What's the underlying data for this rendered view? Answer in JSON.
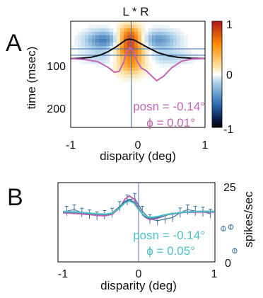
{
  "chart_data": [
    {
      "panel": "A",
      "type": "heatmap",
      "title": "L * R",
      "xlabel": "disparity (deg)",
      "ylabel": "time (msec)",
      "xlim": [
        -1,
        1
      ],
      "ylim": [
        0,
        250
      ],
      "y_reversed": true,
      "x_ticks": [
        "-1",
        "0",
        "1"
      ],
      "y_ticks": [
        "100",
        "200"
      ],
      "colorbar": {
        "min": -1,
        "max": 1,
        "ticks": [
          "1",
          "0",
          "-1"
        ]
      },
      "heat_blobs": [
        {
          "x": -0.12,
          "y": 40,
          "sx": 0.13,
          "sy": 20,
          "v": 0.9
        },
        {
          "x": -0.12,
          "y": 75,
          "sx": 0.18,
          "sy": 18,
          "v": 0.55
        },
        {
          "x": -0.5,
          "y": 45,
          "sx": 0.2,
          "sy": 16,
          "v": -0.55
        },
        {
          "x": 0.3,
          "y": 45,
          "sx": 0.2,
          "sy": 16,
          "v": -0.45
        },
        {
          "x": -0.1,
          "y": 105,
          "sx": 0.14,
          "sy": 18,
          "v": 0.4
        },
        {
          "x": -0.45,
          "y": 85,
          "sx": 0.25,
          "sy": 12,
          "v": -0.2
        },
        {
          "x": 0.45,
          "y": 85,
          "sx": 0.25,
          "sy": 12,
          "v": -0.2
        }
      ],
      "crosshair": {
        "x": -0.1,
        "y_values": [
          65,
          80
        ]
      },
      "series": [
        {
          "color": "#111111",
          "x": [
            -1.0,
            -0.85,
            -0.7,
            -0.55,
            -0.45,
            -0.35,
            -0.25,
            -0.18,
            -0.12,
            -0.06,
            0.0,
            0.1,
            0.2,
            0.3,
            0.45,
            0.6,
            0.8,
            1.0
          ],
          "y": [
            88,
            87,
            85,
            79,
            72,
            63,
            52,
            44,
            42,
            44,
            49,
            58,
            66,
            74,
            81,
            85,
            87,
            88
          ]
        },
        {
          "color": "#c266b4",
          "x": [
            -1.0,
            -0.8,
            -0.6,
            -0.45,
            -0.35,
            -0.28,
            -0.22,
            -0.16,
            -0.12,
            -0.07,
            -0.02,
            0.05,
            0.12,
            0.2,
            0.28,
            0.38,
            0.5,
            0.65,
            0.8,
            1.0
          ],
          "y": [
            88,
            90,
            95,
            108,
            120,
            118,
            100,
            72,
            62,
            70,
            92,
            110,
            116,
            128,
            140,
            130,
            110,
            94,
            89,
            88
          ]
        }
      ],
      "annotations": [
        {
          "text": "posn = -0.14°",
          "color": "#c266b4"
        },
        {
          "text": "ϕ = 0.01°",
          "color": "#c266b4"
        }
      ]
    },
    {
      "panel": "B",
      "type": "line",
      "xlabel": "disparity (deg)",
      "ylabel": "spikes/sec",
      "xlim": [
        -1,
        1.35
      ],
      "ylim": [
        0,
        25
      ],
      "x_ticks": [
        "-1",
        "0",
        "1"
      ],
      "y_ticks": [
        "25",
        "0"
      ],
      "vline_x": 0,
      "data_points": {
        "color": "#3a6fa0",
        "x": [
          -0.95,
          -0.85,
          -0.75,
          -0.65,
          -0.55,
          -0.45,
          -0.35,
          -0.25,
          -0.15,
          -0.05,
          0.05,
          0.15,
          0.25,
          0.35,
          0.45,
          0.55,
          0.65,
          0.75,
          0.85,
          0.95
        ],
        "y": [
          16.0,
          16.5,
          15.5,
          15.0,
          14.5,
          14.8,
          15.5,
          17.5,
          19.5,
          20.0,
          16.0,
          13.5,
          13.0,
          13.5,
          14.0,
          15.5,
          16.5,
          16.0,
          15.8,
          15.2
        ],
        "err": [
          1.5,
          1.5,
          1.4,
          1.4,
          1.3,
          1.4,
          1.4,
          1.5,
          1.6,
          1.6,
          1.5,
          1.4,
          1.4,
          1.4,
          1.4,
          1.5,
          1.5,
          1.5,
          1.5,
          1.4
        ]
      },
      "outlier_points": {
        "x": [
          1.12,
          1.22,
          1.27
        ],
        "y": [
          10.5,
          11.0,
          3.5
        ]
      },
      "series": [
        {
          "color": "#c266b4",
          "x": [
            -1.0,
            -0.8,
            -0.6,
            -0.45,
            -0.35,
            -0.25,
            -0.18,
            -0.12,
            -0.06,
            0.0,
            0.08,
            0.15,
            0.25,
            0.4,
            0.6,
            0.8,
            1.0
          ],
          "y": [
            15.5,
            15.2,
            14.8,
            14.5,
            15.0,
            17.0,
            19.8,
            20.8,
            19.8,
            17.0,
            14.2,
            13.3,
            13.8,
            15.0,
            15.6,
            15.7,
            15.7
          ]
        },
        {
          "color": "#3a6fa0",
          "x": [
            -1.0,
            -0.8,
            -0.6,
            -0.45,
            -0.35,
            -0.25,
            -0.18,
            -0.12,
            -0.06,
            0.0,
            0.08,
            0.15,
            0.25,
            0.4,
            0.6,
            0.8,
            1.0
          ],
          "y": [
            15.8,
            15.6,
            15.2,
            14.9,
            15.3,
            17.2,
            19.0,
            19.6,
            18.8,
            16.6,
            14.4,
            13.7,
            14.0,
            15.0,
            15.7,
            15.9,
            15.9
          ]
        },
        {
          "color": "#4fc0c5",
          "x": [
            -1.0,
            -0.8,
            -0.6,
            -0.45,
            -0.35,
            -0.25,
            -0.18,
            -0.12,
            -0.06,
            0.0,
            0.08,
            0.15,
            0.25,
            0.4,
            0.6,
            0.8,
            1.0
          ],
          "y": [
            15.9,
            15.7,
            15.3,
            15.0,
            15.4,
            17.0,
            18.6,
            19.2,
            18.5,
            16.5,
            14.6,
            14.0,
            14.3,
            15.1,
            15.7,
            15.9,
            15.9
          ]
        }
      ],
      "annotations": [
        {
          "text": "posn = -0.14°",
          "color": "#4fc0c5"
        },
        {
          "text": "ϕ = 0.05°",
          "color": "#4fc0c5"
        }
      ]
    }
  ]
}
